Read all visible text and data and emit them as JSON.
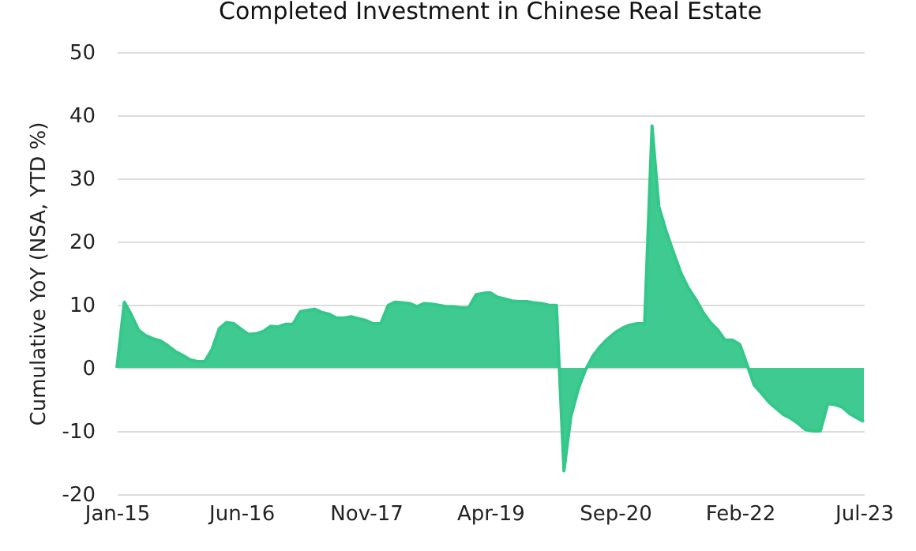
{
  "chart_data": {
    "type": "area",
    "title": "Completed Investment in Chinese Real Estate",
    "ylabel": "Cumulative YoY (NSA, YTD %)",
    "x": [
      "2015-01",
      "2015-02",
      "2015-03",
      "2015-04",
      "2015-05",
      "2015-06",
      "2015-07",
      "2015-08",
      "2015-09",
      "2015-10",
      "2015-11",
      "2015-12",
      "2016-01",
      "2016-02",
      "2016-03",
      "2016-04",
      "2016-05",
      "2016-06",
      "2016-07",
      "2016-08",
      "2016-09",
      "2016-10",
      "2016-11",
      "2016-12",
      "2017-01",
      "2017-02",
      "2017-03",
      "2017-04",
      "2017-05",
      "2017-06",
      "2017-07",
      "2017-08",
      "2017-09",
      "2017-10",
      "2017-11",
      "2017-12",
      "2018-01",
      "2018-02",
      "2018-03",
      "2018-04",
      "2018-05",
      "2018-06",
      "2018-07",
      "2018-08",
      "2018-09",
      "2018-10",
      "2018-11",
      "2018-12",
      "2019-01",
      "2019-02",
      "2019-03",
      "2019-04",
      "2019-05",
      "2019-06",
      "2019-07",
      "2019-08",
      "2019-09",
      "2019-10",
      "2019-11",
      "2019-12",
      "2020-01",
      "2020-02",
      "2020-03",
      "2020-04",
      "2020-05",
      "2020-06",
      "2020-07",
      "2020-08",
      "2020-09",
      "2020-10",
      "2020-11",
      "2020-12",
      "2021-01",
      "2021-02",
      "2021-03",
      "2021-04",
      "2021-05",
      "2021-06",
      "2021-07",
      "2021-08",
      "2021-09",
      "2021-10",
      "2021-11",
      "2021-12",
      "2022-01",
      "2022-02",
      "2022-03",
      "2022-04",
      "2022-05",
      "2022-06",
      "2022-07",
      "2022-08",
      "2022-09",
      "2022-10",
      "2022-11",
      "2022-12",
      "2023-01",
      "2023-02",
      "2023-03",
      "2023-04",
      "2023-05",
      "2023-06",
      "2023-07"
    ],
    "series": [
      {
        "color": "#34c78a",
        "values": [
          0,
          10.4,
          8.5,
          6.0,
          5.1,
          4.6,
          4.3,
          3.5,
          2.6,
          2.0,
          1.3,
          1.0,
          1.0,
          3.0,
          6.2,
          7.2,
          7.0,
          6.1,
          5.3,
          5.4,
          5.8,
          6.6,
          6.5,
          6.9,
          6.9,
          8.9,
          9.1,
          9.3,
          8.8,
          8.5,
          7.9,
          7.9,
          8.1,
          7.8,
          7.5,
          7.0,
          7.0,
          9.9,
          10.4,
          10.3,
          10.2,
          9.7,
          10.2,
          10.1,
          9.9,
          9.7,
          9.7,
          9.5,
          9.5,
          11.6,
          11.8,
          11.9,
          11.2,
          10.9,
          10.6,
          10.5,
          10.5,
          10.3,
          10.2,
          9.9,
          9.9,
          -16.3,
          -7.7,
          -3.3,
          -0.3,
          1.9,
          3.4,
          4.6,
          5.6,
          6.3,
          6.8,
          7.0,
          7.0,
          38.3,
          25.6,
          21.6,
          18.3,
          15.0,
          12.7,
          10.9,
          8.8,
          7.2,
          6.0,
          4.4,
          4.4,
          3.7,
          0.7,
          -2.7,
          -4.0,
          -5.4,
          -6.4,
          -7.4,
          -8.0,
          -8.8,
          -9.8,
          -10.0,
          -10.0,
          -5.7,
          -5.8,
          -6.2,
          -7.2,
          -7.9,
          -8.5
        ]
      }
    ],
    "xlim": [
      "2015-01",
      "2023-07"
    ],
    "xticks": [
      {
        "value": "2015-01",
        "label": "Jan-15"
      },
      {
        "value": "2016-06",
        "label": "Jun-16"
      },
      {
        "value": "2017-11",
        "label": "Nov-17"
      },
      {
        "value": "2019-04",
        "label": "Apr-19"
      },
      {
        "value": "2020-09",
        "label": "Sep-20"
      },
      {
        "value": "2022-02",
        "label": "Feb-22"
      },
      {
        "value": "2023-07",
        "label": "Jul-23"
      }
    ],
    "ylim": [
      -20,
      50
    ],
    "yticks": [
      -20,
      -10,
      0,
      10,
      20,
      30,
      40,
      50
    ],
    "grid": "y"
  }
}
